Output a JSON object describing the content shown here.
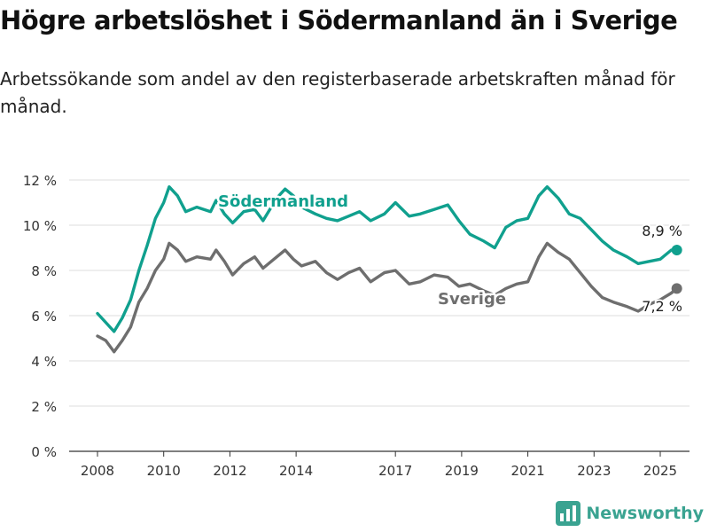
{
  "title": "Högre arbetslöshet i Södermanland än i Sverige",
  "subtitle": "Arbetssökande som andel av den registerbaserade arbetskraften månad för månad.",
  "brand": {
    "name": "Newsworthy",
    "color": "#3aa391"
  },
  "colors": {
    "sodermanland": "#10a08e",
    "sverige": "#6e6e6e",
    "grid": "#dddddd",
    "axis": "#333333"
  },
  "chart_data": {
    "type": "line",
    "title": "",
    "xlabel": "",
    "ylabel": "",
    "ylim": [
      0,
      12
    ],
    "y_ticks": [
      0,
      2,
      4,
      6,
      8,
      10,
      12
    ],
    "y_tick_labels": [
      "0 %",
      "2 %",
      "4 %",
      "6 %",
      "8 %",
      "10 %",
      "12 %"
    ],
    "x_ticks": [
      2008,
      2010,
      2012,
      2014,
      2017,
      2019,
      2021,
      2023,
      2025
    ],
    "x_tick_labels": [
      "2008",
      "2010",
      "2012",
      "2014",
      "2017",
      "2019",
      "2021",
      "2023",
      "2025"
    ],
    "grid": true,
    "series": [
      {
        "name": "Södermanland",
        "color": "#10a08e",
        "end_label": "8,9 %",
        "points": [
          [
            "2008-01",
            6.1
          ],
          [
            "2008-04",
            5.7
          ],
          [
            "2008-07",
            5.3
          ],
          [
            "2008-10",
            5.9
          ],
          [
            "2009-01",
            6.7
          ],
          [
            "2009-04",
            8.0
          ],
          [
            "2009-07",
            9.1
          ],
          [
            "2009-10",
            10.3
          ],
          [
            "2010-01",
            11.0
          ],
          [
            "2010-03",
            11.7
          ],
          [
            "2010-06",
            11.3
          ],
          [
            "2010-09",
            10.6
          ],
          [
            "2011-01",
            10.8
          ],
          [
            "2011-06",
            10.6
          ],
          [
            "2011-08",
            11.1
          ],
          [
            "2011-11",
            10.5
          ],
          [
            "2012-02",
            10.1
          ],
          [
            "2012-06",
            10.6
          ],
          [
            "2012-10",
            10.7
          ],
          [
            "2013-01",
            10.2
          ],
          [
            "2013-06",
            11.2
          ],
          [
            "2013-09",
            11.6
          ],
          [
            "2013-12",
            11.3
          ],
          [
            "2014-03",
            10.8
          ],
          [
            "2014-08",
            10.5
          ],
          [
            "2014-12",
            10.3
          ],
          [
            "2015-04",
            10.2
          ],
          [
            "2015-08",
            10.4
          ],
          [
            "2015-12",
            10.6
          ],
          [
            "2016-04",
            10.2
          ],
          [
            "2016-09",
            10.5
          ],
          [
            "2017-01",
            11.0
          ],
          [
            "2017-06",
            10.4
          ],
          [
            "2017-10",
            10.5
          ],
          [
            "2018-03",
            10.7
          ],
          [
            "2018-08",
            10.9
          ],
          [
            "2018-12",
            10.2
          ],
          [
            "2019-04",
            9.6
          ],
          [
            "2019-09",
            9.3
          ],
          [
            "2020-01",
            9.0
          ],
          [
            "2020-05",
            9.9
          ],
          [
            "2020-09",
            10.2
          ],
          [
            "2021-01",
            10.3
          ],
          [
            "2021-05",
            11.3
          ],
          [
            "2021-08",
            11.7
          ],
          [
            "2021-12",
            11.2
          ],
          [
            "2022-04",
            10.5
          ],
          [
            "2022-08",
            10.3
          ],
          [
            "2022-12",
            9.8
          ],
          [
            "2023-04",
            9.3
          ],
          [
            "2023-08",
            8.9
          ],
          [
            "2024-01",
            8.6
          ],
          [
            "2024-05",
            8.3
          ],
          [
            "2024-09",
            8.4
          ],
          [
            "2025-01",
            8.5
          ],
          [
            "2025-05",
            8.9
          ],
          [
            "2025-07",
            8.9
          ]
        ]
      },
      {
        "name": "Sverige",
        "color": "#6e6e6e",
        "end_label": "7,2 %",
        "points": [
          [
            "2008-01",
            5.1
          ],
          [
            "2008-04",
            4.9
          ],
          [
            "2008-07",
            4.4
          ],
          [
            "2008-10",
            4.9
          ],
          [
            "2009-01",
            5.5
          ],
          [
            "2009-04",
            6.6
          ],
          [
            "2009-07",
            7.2
          ],
          [
            "2009-10",
            8.0
          ],
          [
            "2010-01",
            8.5
          ],
          [
            "2010-03",
            9.2
          ],
          [
            "2010-06",
            8.9
          ],
          [
            "2010-09",
            8.4
          ],
          [
            "2011-01",
            8.6
          ],
          [
            "2011-06",
            8.5
          ],
          [
            "2011-08",
            8.9
          ],
          [
            "2011-11",
            8.4
          ],
          [
            "2012-02",
            7.8
          ],
          [
            "2012-06",
            8.3
          ],
          [
            "2012-10",
            8.6
          ],
          [
            "2013-01",
            8.1
          ],
          [
            "2013-06",
            8.6
          ],
          [
            "2013-09",
            8.9
          ],
          [
            "2013-12",
            8.5
          ],
          [
            "2014-03",
            8.2
          ],
          [
            "2014-08",
            8.4
          ],
          [
            "2014-12",
            7.9
          ],
          [
            "2015-04",
            7.6
          ],
          [
            "2015-08",
            7.9
          ],
          [
            "2015-12",
            8.1
          ],
          [
            "2016-04",
            7.5
          ],
          [
            "2016-09",
            7.9
          ],
          [
            "2017-01",
            8.0
          ],
          [
            "2017-06",
            7.4
          ],
          [
            "2017-10",
            7.5
          ],
          [
            "2018-03",
            7.8
          ],
          [
            "2018-08",
            7.7
          ],
          [
            "2018-12",
            7.3
          ],
          [
            "2019-04",
            7.4
          ],
          [
            "2019-09",
            7.1
          ],
          [
            "2020-01",
            6.9
          ],
          [
            "2020-05",
            7.2
          ],
          [
            "2020-09",
            7.4
          ],
          [
            "2021-01",
            7.5
          ],
          [
            "2021-05",
            8.6
          ],
          [
            "2021-08",
            9.2
          ],
          [
            "2021-12",
            8.8
          ],
          [
            "2022-04",
            8.5
          ],
          [
            "2022-08",
            7.9
          ],
          [
            "2022-12",
            7.3
          ],
          [
            "2023-04",
            6.8
          ],
          [
            "2023-08",
            6.6
          ],
          [
            "2024-01",
            6.4
          ],
          [
            "2024-05",
            6.2
          ],
          [
            "2024-09",
            6.5
          ],
          [
            "2025-01",
            6.7
          ],
          [
            "2025-05",
            7.0
          ],
          [
            "2025-07",
            7.2
          ]
        ]
      }
    ]
  }
}
